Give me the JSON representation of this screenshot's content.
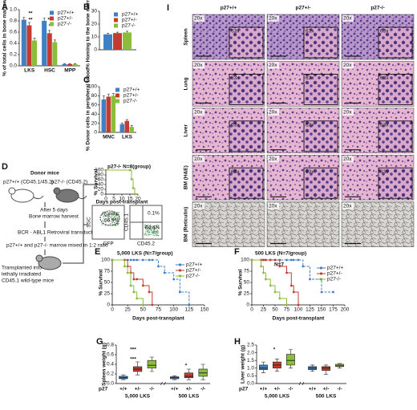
{
  "chart_data": [
    {
      "type": "bar",
      "panel": "A",
      "ylabel": "% of total cells in bone marrow",
      "categories": [
        "LKS",
        "HSC",
        "MPP"
      ],
      "series": [
        {
          "name": "p27+/+",
          "color": "#3f7fc4",
          "values": [
            0.82,
            0.8,
            0.03
          ],
          "errors": [
            0.04,
            0.05,
            0.01
          ]
        },
        {
          "name": "p27+/-",
          "color": "#c43c2f",
          "values": [
            0.72,
            0.58,
            0.03
          ],
          "errors": [
            0.05,
            0.05,
            0.01
          ]
        },
        {
          "name": "p27-/-",
          "color": "#8bbd3a",
          "values": [
            0.45,
            0.42,
            0.03
          ],
          "errors": [
            0.04,
            0.04,
            0.01
          ]
        }
      ],
      "ylim": [
        0,
        1
      ],
      "yticks": [
        {
          "value": 0,
          "label": "0.0"
        },
        0.2,
        0.4,
        0.6,
        0.8,
        {
          "value": 1,
          "label": "1.0"
        }
      ],
      "annotations": [
        "**",
        "**",
        "**",
        "*"
      ],
      "legend": "top-right"
    },
    {
      "type": "bar",
      "panel": "B",
      "ylabel": "% Homing to the bone marrow",
      "categories": [
        null
      ],
      "series": [
        {
          "name": "p27+/+",
          "color": "#3f7fc4",
          "values": [
            12
          ],
          "errors": [
            0.8
          ]
        },
        {
          "name": "p27+/-",
          "color": "#c43c2f",
          "values": [
            13
          ],
          "errors": [
            0.7
          ]
        },
        {
          "name": "p27-/-",
          "color": "#8bbd3a",
          "values": [
            13.5
          ],
          "errors": [
            0.9
          ]
        }
      ],
      "ylim": [
        0,
        30
      ],
      "yticks": [
        0,
        10,
        20,
        30
      ],
      "legend": "top-right"
    },
    {
      "type": "bar",
      "panel": "C",
      "ylabel": "% Donor cells in peripheral blood",
      "categories": [
        "MNC",
        "LKS"
      ],
      "series": [
        {
          "name": "p27+/+",
          "color": "#3f7fc4",
          "values": [
            72,
            18
          ],
          "errors": [
            8,
            2
          ]
        },
        {
          "name": "p27+/-",
          "color": "#c43c2f",
          "values": [
            78,
            25
          ],
          "errors": [
            6,
            3
          ]
        },
        {
          "name": "p27-/-",
          "color": "#8bbd3a",
          "values": [
            80,
            12
          ],
          "errors": [
            5,
            3
          ]
        }
      ],
      "ylim": [
        0,
        100
      ],
      "yticks": [
        0,
        20,
        40,
        60,
        80,
        100
      ],
      "legend": "top-right"
    },
    {
      "type": "line",
      "title": "p27-/- N=8(group)",
      "xlabel": "Days post-transplant",
      "ylabel": "% Survival",
      "x": [
        0,
        15,
        16,
        17,
        18
      ],
      "series": [
        {
          "color": "#8bbd3a",
          "values": [
            100,
            100,
            62.5,
            25,
            0
          ]
        }
      ],
      "xlim": [
        0,
        20
      ],
      "xticks": [
        0,
        5,
        10,
        15,
        20
      ],
      "ylim": [
        0,
        100
      ],
      "yticks": [
        0,
        20,
        40,
        60,
        80,
        100
      ]
    },
    {
      "type": "line",
      "panel": "E",
      "title": "5,000 LKS (N=7/group)",
      "xlabel": "Days post-transplant",
      "ylabel": "% Survival",
      "x": [
        0,
        20,
        25,
        30,
        35,
        40,
        50,
        60,
        65,
        75,
        85,
        100,
        110,
        125
      ],
      "series": [
        {
          "name": "p27+/+",
          "color": "#3f7fc4",
          "values": [
            100,
            100,
            100,
            100,
            100,
            100,
            100,
            100,
            100,
            85.7,
            71.4,
            57.1,
            28.6,
            0
          ]
        },
        {
          "name": "p27+/-",
          "color": "#c43c2f",
          "values": [
            100,
            100,
            85.7,
            71.4,
            57.1,
            57.1,
            42.9,
            28.6,
            0,
            null,
            null,
            null,
            null,
            null
          ]
        },
        {
          "name": "p27-/-",
          "color": "#8bbd3a",
          "values": [
            100,
            85.7,
            71.4,
            42.9,
            28.6,
            14.3,
            0,
            null,
            null,
            null,
            null,
            null,
            null,
            null
          ]
        }
      ],
      "xlim": [
        0,
        150
      ],
      "xticks": [
        0,
        25,
        50,
        75,
        100,
        125,
        150
      ],
      "ylim": [
        0,
        100
      ],
      "yticks": [
        0,
        25,
        50,
        75,
        100
      ],
      "legend": "top-right"
    },
    {
      "type": "line",
      "panel": "F",
      "title": "500 LKS (N=7/group)",
      "xlabel": "Days post-transplant",
      "ylabel": "% Survival",
      "x": [
        0,
        20,
        25,
        30,
        40,
        50,
        60,
        75,
        85,
        90,
        100,
        110,
        125,
        150,
        175
      ],
      "series": [
        {
          "name": "p27+/+",
          "color": "#3f7fc4",
          "values": [
            100,
            100,
            100,
            100,
            100,
            100,
            100,
            100,
            100,
            100,
            100,
            85.7,
            57.1,
            28.6,
            28.6
          ]
        },
        {
          "name": "p27+/-",
          "color": "#c43c2f",
          "values": [
            100,
            100,
            100,
            100,
            100,
            100,
            85.7,
            71.4,
            42.9,
            28.6,
            0,
            null,
            null,
            null,
            null
          ]
        },
        {
          "name": "p27-/-",
          "color": "#8bbd3a",
          "values": [
            100,
            85.7,
            71.4,
            57.1,
            42.9,
            28.6,
            14.3,
            0,
            null,
            null,
            null,
            null,
            null,
            null,
            null
          ]
        }
      ],
      "xlim": [
        0,
        200
      ],
      "xticks": [
        0,
        25,
        50,
        75,
        100,
        125,
        150,
        175,
        200
      ],
      "ylim": [
        0,
        100
      ],
      "yticks": [
        0,
        25,
        50,
        75,
        100
      ],
      "annotations": [
        "N=7"
      ],
      "legend": "right"
    },
    {
      "type": "box",
      "panel": "G",
      "ylabel": "Spleen weight (g)",
      "categories": [
        "+/+",
        "+/-",
        "-/-",
        "+/+",
        "+/-",
        "-/-"
      ],
      "groups": [
        "5,000 LKS",
        "500 LKS"
      ],
      "group_label": "p27",
      "colors": [
        "#3f7fc4",
        "#c43c2f",
        "#8bbd3a",
        "#3f7fc4",
        "#c43c2f",
        "#8bbd3a"
      ],
      "boxes": [
        {
          "low": 0.08,
          "q1": 0.1,
          "median": 0.12,
          "q3": 0.15,
          "high": 0.18
        },
        {
          "low": 0.18,
          "q1": 0.25,
          "median": 0.3,
          "q3": 0.35,
          "high": 0.45
        },
        {
          "low": 0.25,
          "q1": 0.32,
          "median": 0.38,
          "q3": 0.48,
          "high": 0.55
        },
        {
          "low": 0.08,
          "q1": 0.1,
          "median": 0.12,
          "q3": 0.14,
          "high": 0.16
        },
        {
          "low": 0.08,
          "q1": 0.12,
          "median": 0.15,
          "q3": 0.22,
          "high": 0.3
        },
        {
          "low": 0.08,
          "q1": 0.15,
          "median": 0.22,
          "q3": 0.3,
          "high": 0.4
        }
      ],
      "ylim": [
        0,
        0.8
      ],
      "yticks": [
        {
          "value": 0,
          "label": "0.0"
        },
        0.2,
        0.4,
        0.6,
        0.8
      ],
      "annotations": [
        "***",
        "***",
        "*"
      ]
    },
    {
      "type": "box",
      "panel": "H",
      "ylabel": "Liver weight (g)",
      "categories": [
        "+/+",
        "+/-",
        "-/-",
        "+/+",
        "+/-",
        "-/-"
      ],
      "groups": [
        "5,000 LKS",
        "500 LKS"
      ],
      "group_label": "p27",
      "colors": [
        "#3f7fc4",
        "#c43c2f",
        "#8bbd3a",
        "#3f7fc4",
        "#c43c2f",
        "#8bbd3a"
      ],
      "boxes": [
        {
          "low": 0.7,
          "q1": 0.9,
          "median": 1.0,
          "q3": 1.2,
          "high": 1.4
        },
        {
          "low": 0.8,
          "q1": 1.0,
          "median": 1.2,
          "q3": 1.4,
          "high": 1.6
        },
        {
          "low": 1.0,
          "q1": 1.2,
          "median": 1.5,
          "q3": 1.9,
          "high": 2.2
        },
        {
          "low": 0.8,
          "q1": 0.9,
          "median": 1.0,
          "q3": 1.1,
          "high": 1.2
        },
        {
          "low": 0.6,
          "q1": 0.85,
          "median": 1.0,
          "q3": 1.1,
          "high": 1.2
        },
        {
          "low": 1.0,
          "q1": 1.1,
          "median": 1.15,
          "q3": 1.25,
          "high": 1.3
        }
      ],
      "ylim": [
        0,
        2.5
      ],
      "yticks": [
        {
          "value": 0,
          "label": "0.0"
        },
        0.5,
        {
          "value": 1,
          "label": "1.0"
        },
        1.5,
        {
          "value": 2,
          "label": "2.0"
        },
        2.5
      ],
      "annotations": [
        "*"
      ]
    }
  ],
  "panel_d": {
    "letter": "D",
    "title": "Donor mice",
    "donor_wt": "p27+/+ (CD45.1/45.2)",
    "donor_ko": "p27-/- (CD45.2)",
    "step_days": "After 5 days",
    "step_harvest": "Bone marrow harvest",
    "step_transduction": "BCR - ABL1 Retroviral transduction",
    "step_mix": "p27+/+ and p27-/- marrow mixed in 1:2 ratio",
    "recipient": [
      "Transplanted into",
      "lethally irradiated",
      "CD45.1 wild-type mice"
    ],
    "flow": {
      "ssc": "SSC",
      "gfp": "GFP",
      "gate": "GFP+",
      "gate_pct": "66.9%",
      "cd451": "CD45.1",
      "cd452": "CD45.2",
      "q_top": "0.1%",
      "q_bottom": "64.4%"
    }
  },
  "panel_i": {
    "letter": "I",
    "columns": [
      "p27+/+",
      "p27+/-",
      "p27-/-"
    ],
    "rows": [
      "Spleen",
      "Lung",
      "Liver",
      "BM (H&E)",
      "BM (Reticulin)"
    ],
    "low_mag": "20x",
    "high_mag": "63x"
  }
}
